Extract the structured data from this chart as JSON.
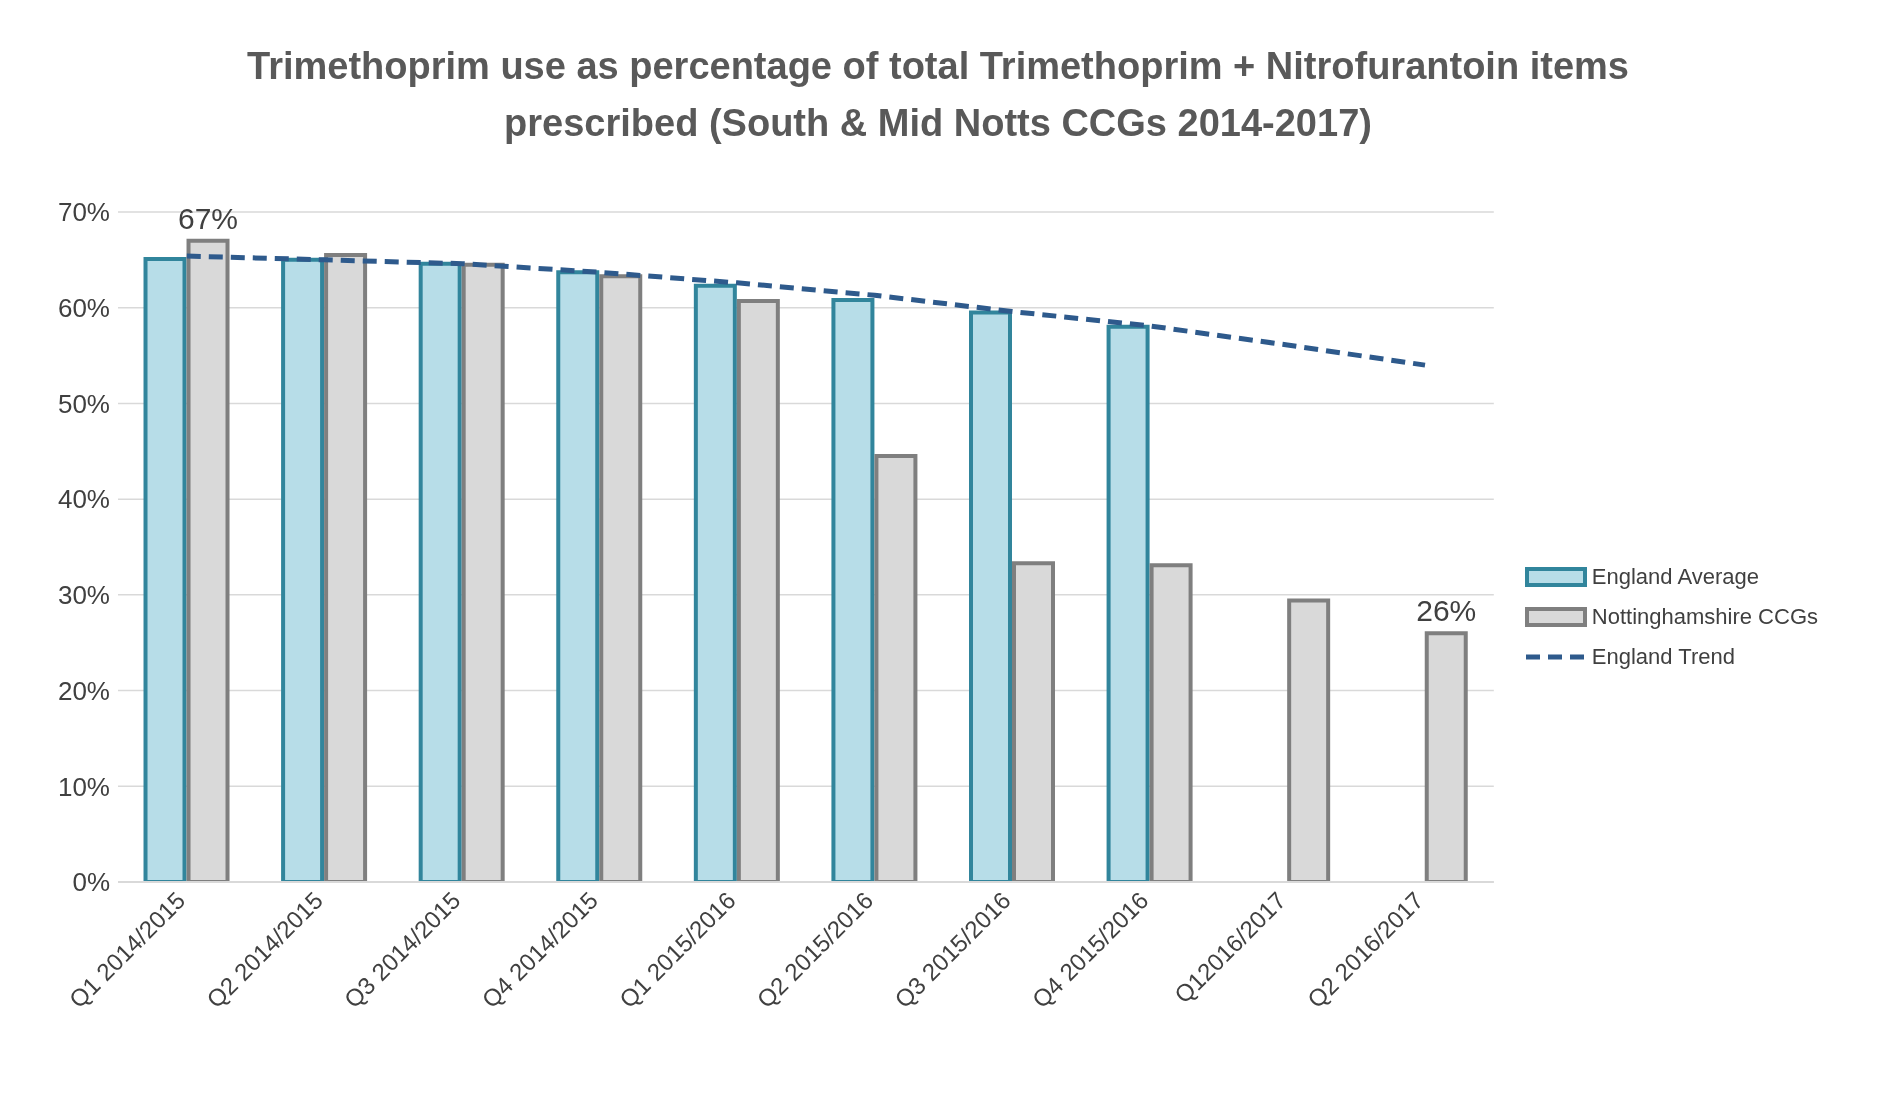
{
  "chart_data": {
    "type": "bar",
    "title": "Trimethoprim use as  percentage of total Trimethoprim + Nitrofurantoin items prescribed (South & Mid Notts CCGs 2014-2017)",
    "categories": [
      "Q1 2014/2015",
      "Q2 2014/2015",
      "Q3 2014/2015",
      "Q4 2014/2015",
      "Q1 2015/2016",
      "Q2 2015/2016",
      "Q3 2015/2016",
      "Q4 2015/2016",
      "Q12016/2017",
      "Q2 2016/2017"
    ],
    "series": [
      {
        "name": "England Average",
        "color": "#b7dde8",
        "values": [
          65.1,
          65.0,
          64.6,
          63.7,
          62.3,
          60.8,
          59.5,
          58.0,
          null,
          null
        ]
      },
      {
        "name": "Nottinghamshire CCGs",
        "color": "#d9d9d9",
        "values": [
          67,
          65.5,
          64.5,
          63.3,
          60.7,
          44.5,
          33.3,
          33.1,
          29.4,
          26
        ],
        "value_labels": [
          "67%",
          null,
          null,
          null,
          null,
          null,
          null,
          null,
          null,
          "26%"
        ]
      },
      {
        "name": "England Trend",
        "type": "line",
        "color": "#2e5a8c",
        "line_style": "dashed",
        "values": [
          65.4,
          65.0,
          64.6,
          63.7,
          62.6,
          61.3,
          59.6,
          58.1,
          56.1,
          54.0
        ]
      }
    ],
    "ylim": [
      0,
      70
    ],
    "yticks": [
      {
        "value": 0,
        "label": "0%"
      },
      {
        "value": 10,
        "label": "10%"
      },
      {
        "value": 20,
        "label": "20%"
      },
      {
        "value": 30,
        "label": "30%"
      },
      {
        "value": 40,
        "label": "40%"
      },
      {
        "value": 50,
        "label": "50%"
      },
      {
        "value": 60,
        "label": "60%"
      },
      {
        "value": 70,
        "label": "70%"
      }
    ],
    "grid": "y",
    "legend": "right",
    "marker": "none"
  }
}
